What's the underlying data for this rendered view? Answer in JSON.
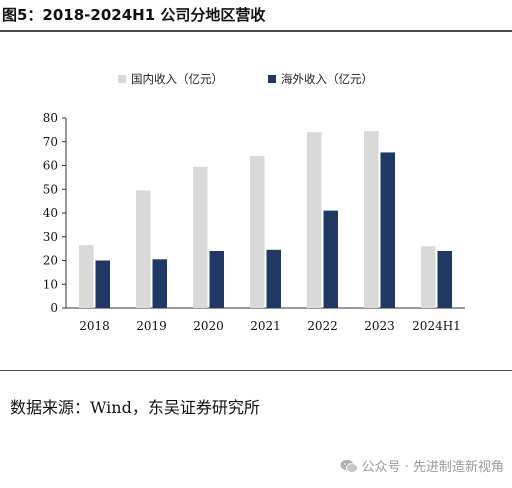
{
  "figure_title": "图5：2018-2024H1 公司分地区营收",
  "source_note": "数据来源：Wind，东吴证券研究所",
  "watermark": "公众号 · 先进制造新视角",
  "chart_data": {
    "type": "bar",
    "title": "",
    "xlabel": "",
    "ylabel": "",
    "categories": [
      "2018",
      "2019",
      "2020",
      "2021",
      "2022",
      "2023",
      "2024H1"
    ],
    "ylim": [
      0,
      80
    ],
    "yticks": [
      0,
      10,
      20,
      30,
      40,
      50,
      60,
      70,
      80
    ],
    "grid": false,
    "legend_position": "top",
    "series": [
      {
        "name": "国内收入（亿元）",
        "color": "#d9d9d9",
        "values": [
          26.5,
          49.5,
          59.5,
          64,
          74,
          74.5,
          26
        ]
      },
      {
        "name": "海外收入（亿元）",
        "color": "#1f3864",
        "values": [
          20,
          20.5,
          24,
          24.5,
          41,
          65.5,
          24
        ]
      }
    ]
  }
}
